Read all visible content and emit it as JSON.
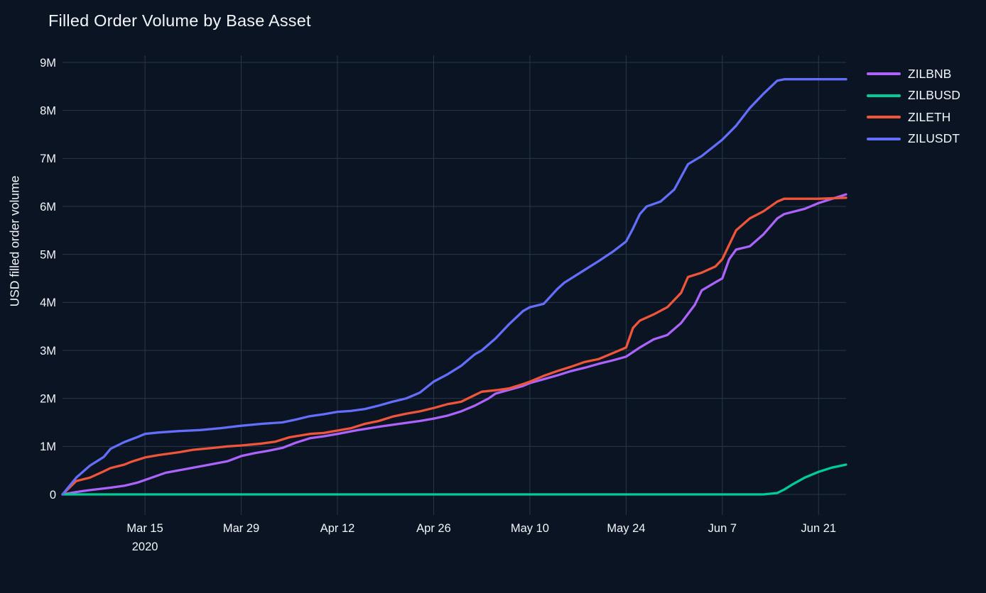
{
  "page": {
    "background_color": "#0a1422",
    "grid_color": "#2b3647",
    "text_color": "#f2f5fa"
  },
  "chart_data": {
    "type": "line",
    "title": "Filled Order Volume by Base Asset",
    "xlabel": "",
    "ylabel": "USD filled order volume",
    "y_unit": "millions of USD",
    "x_encoding": "days since 2020-03-03",
    "x_range": [
      0,
      114
    ],
    "y_range": [
      0,
      9
    ],
    "grid": true,
    "legend_position": "right",
    "xticks": [
      {
        "day": 12,
        "label": "Mar 15",
        "sub": "2020"
      },
      {
        "day": 26,
        "label": "Mar 29"
      },
      {
        "day": 40,
        "label": "Apr 12"
      },
      {
        "day": 54,
        "label": "Apr 26"
      },
      {
        "day": 68,
        "label": "May 10"
      },
      {
        "day": 82,
        "label": "May 24"
      },
      {
        "day": 96,
        "label": "Jun 7"
      },
      {
        "day": 110,
        "label": "Jun 21"
      }
    ],
    "yticks": [
      {
        "v": 0,
        "label": "0"
      },
      {
        "v": 1,
        "label": "1M"
      },
      {
        "v": 2,
        "label": "2M"
      },
      {
        "v": 3,
        "label": "3M"
      },
      {
        "v": 4,
        "label": "4M"
      },
      {
        "v": 5,
        "label": "5M"
      },
      {
        "v": 6,
        "label": "6M"
      },
      {
        "v": 7,
        "label": "7M"
      },
      {
        "v": 8,
        "label": "8M"
      },
      {
        "v": 9,
        "label": "9M"
      }
    ],
    "series": [
      {
        "name": "ZILBNB",
        "color": "#ab63fa",
        "points": [
          [
            0,
            0
          ],
          [
            2,
            0.05
          ],
          [
            4,
            0.09
          ],
          [
            7,
            0.14
          ],
          [
            9,
            0.18
          ],
          [
            11,
            0.25
          ],
          [
            12,
            0.3
          ],
          [
            15,
            0.45
          ],
          [
            18,
            0.53
          ],
          [
            21,
            0.61
          ],
          [
            24,
            0.69
          ],
          [
            26,
            0.8
          ],
          [
            28,
            0.86
          ],
          [
            30,
            0.91
          ],
          [
            32,
            0.97
          ],
          [
            34,
            1.08
          ],
          [
            36,
            1.17
          ],
          [
            38,
            1.21
          ],
          [
            40,
            1.26
          ],
          [
            43,
            1.34
          ],
          [
            46,
            1.41
          ],
          [
            49,
            1.47
          ],
          [
            52,
            1.53
          ],
          [
            54,
            1.58
          ],
          [
            56,
            1.64
          ],
          [
            58,
            1.73
          ],
          [
            60,
            1.85
          ],
          [
            62,
            2.0
          ],
          [
            63,
            2.1
          ],
          [
            65,
            2.18
          ],
          [
            67,
            2.26
          ],
          [
            68,
            2.32
          ],
          [
            70,
            2.4
          ],
          [
            72,
            2.48
          ],
          [
            74,
            2.57
          ],
          [
            76,
            2.64
          ],
          [
            78,
            2.72
          ],
          [
            80,
            2.79
          ],
          [
            82,
            2.87
          ],
          [
            84,
            3.06
          ],
          [
            86,
            3.23
          ],
          [
            88,
            3.32
          ],
          [
            90,
            3.57
          ],
          [
            92,
            3.95
          ],
          [
            93,
            4.25
          ],
          [
            95,
            4.42
          ],
          [
            96,
            4.5
          ],
          [
            97,
            4.9
          ],
          [
            98,
            5.1
          ],
          [
            100,
            5.17
          ],
          [
            102,
            5.42
          ],
          [
            104,
            5.75
          ],
          [
            105,
            5.84
          ],
          [
            108,
            5.95
          ],
          [
            110,
            6.07
          ],
          [
            112,
            6.16
          ],
          [
            114,
            6.25
          ]
        ]
      },
      {
        "name": "ZILBUSD",
        "color": "#00cc96",
        "points": [
          [
            0,
            0
          ],
          [
            60,
            0
          ],
          [
            102,
            0
          ],
          [
            104,
            0.03
          ],
          [
            105,
            0.1
          ],
          [
            106,
            0.19
          ],
          [
            108,
            0.35
          ],
          [
            110,
            0.47
          ],
          [
            112,
            0.56
          ],
          [
            114,
            0.62
          ]
        ]
      },
      {
        "name": "ZILETH",
        "color": "#ef553b",
        "points": [
          [
            0,
            0
          ],
          [
            2,
            0.28
          ],
          [
            4,
            0.35
          ],
          [
            6,
            0.48
          ],
          [
            7,
            0.55
          ],
          [
            9,
            0.62
          ],
          [
            10,
            0.68
          ],
          [
            12,
            0.77
          ],
          [
            14,
            0.82
          ],
          [
            17,
            0.88
          ],
          [
            19,
            0.93
          ],
          [
            22,
            0.97
          ],
          [
            24,
            1.0
          ],
          [
            26,
            1.02
          ],
          [
            29,
            1.06
          ],
          [
            31,
            1.1
          ],
          [
            33,
            1.19
          ],
          [
            36,
            1.26
          ],
          [
            38,
            1.28
          ],
          [
            40,
            1.33
          ],
          [
            42,
            1.38
          ],
          [
            44,
            1.47
          ],
          [
            46,
            1.53
          ],
          [
            48,
            1.62
          ],
          [
            50,
            1.68
          ],
          [
            52,
            1.73
          ],
          [
            54,
            1.8
          ],
          [
            56,
            1.88
          ],
          [
            58,
            1.93
          ],
          [
            60,
            2.07
          ],
          [
            61,
            2.14
          ],
          [
            63,
            2.17
          ],
          [
            65,
            2.21
          ],
          [
            67,
            2.3
          ],
          [
            68,
            2.35
          ],
          [
            70,
            2.47
          ],
          [
            72,
            2.57
          ],
          [
            74,
            2.66
          ],
          [
            76,
            2.76
          ],
          [
            78,
            2.82
          ],
          [
            80,
            2.94
          ],
          [
            82,
            3.06
          ],
          [
            83,
            3.47
          ],
          [
            84,
            3.62
          ],
          [
            86,
            3.75
          ],
          [
            88,
            3.9
          ],
          [
            90,
            4.2
          ],
          [
            91,
            4.53
          ],
          [
            93,
            4.62
          ],
          [
            95,
            4.75
          ],
          [
            96,
            4.9
          ],
          [
            97,
            5.2
          ],
          [
            98,
            5.5
          ],
          [
            100,
            5.75
          ],
          [
            102,
            5.9
          ],
          [
            104,
            6.1
          ],
          [
            105,
            6.16
          ],
          [
            110,
            6.16
          ],
          [
            114,
            6.18
          ]
        ]
      },
      {
        "name": "ZILUSDT",
        "color": "#636efa",
        "points": [
          [
            0,
            0
          ],
          [
            2,
            0.35
          ],
          [
            4,
            0.6
          ],
          [
            6,
            0.78
          ],
          [
            7,
            0.95
          ],
          [
            9,
            1.09
          ],
          [
            11,
            1.2
          ],
          [
            12,
            1.26
          ],
          [
            14,
            1.29
          ],
          [
            17,
            1.32
          ],
          [
            20,
            1.34
          ],
          [
            23,
            1.38
          ],
          [
            26,
            1.43
          ],
          [
            29,
            1.47
          ],
          [
            32,
            1.5
          ],
          [
            34,
            1.56
          ],
          [
            36,
            1.63
          ],
          [
            38,
            1.67
          ],
          [
            40,
            1.72
          ],
          [
            42,
            1.74
          ],
          [
            44,
            1.78
          ],
          [
            46,
            1.85
          ],
          [
            48,
            1.93
          ],
          [
            50,
            2.0
          ],
          [
            52,
            2.12
          ],
          [
            54,
            2.35
          ],
          [
            56,
            2.5
          ],
          [
            58,
            2.68
          ],
          [
            60,
            2.92
          ],
          [
            61,
            3.0
          ],
          [
            63,
            3.25
          ],
          [
            65,
            3.55
          ],
          [
            67,
            3.82
          ],
          [
            68,
            3.9
          ],
          [
            70,
            3.97
          ],
          [
            72,
            4.28
          ],
          [
            73,
            4.41
          ],
          [
            76,
            4.68
          ],
          [
            78,
            4.86
          ],
          [
            80,
            5.05
          ],
          [
            82,
            5.27
          ],
          [
            83,
            5.54
          ],
          [
            84,
            5.84
          ],
          [
            85,
            6.0
          ],
          [
            87,
            6.1
          ],
          [
            89,
            6.35
          ],
          [
            91,
            6.88
          ],
          [
            93,
            7.05
          ],
          [
            96,
            7.39
          ],
          [
            98,
            7.68
          ],
          [
            100,
            8.05
          ],
          [
            102,
            8.35
          ],
          [
            104,
            8.62
          ],
          [
            105,
            8.65
          ],
          [
            110,
            8.65
          ],
          [
            114,
            8.65
          ]
        ]
      }
    ]
  }
}
